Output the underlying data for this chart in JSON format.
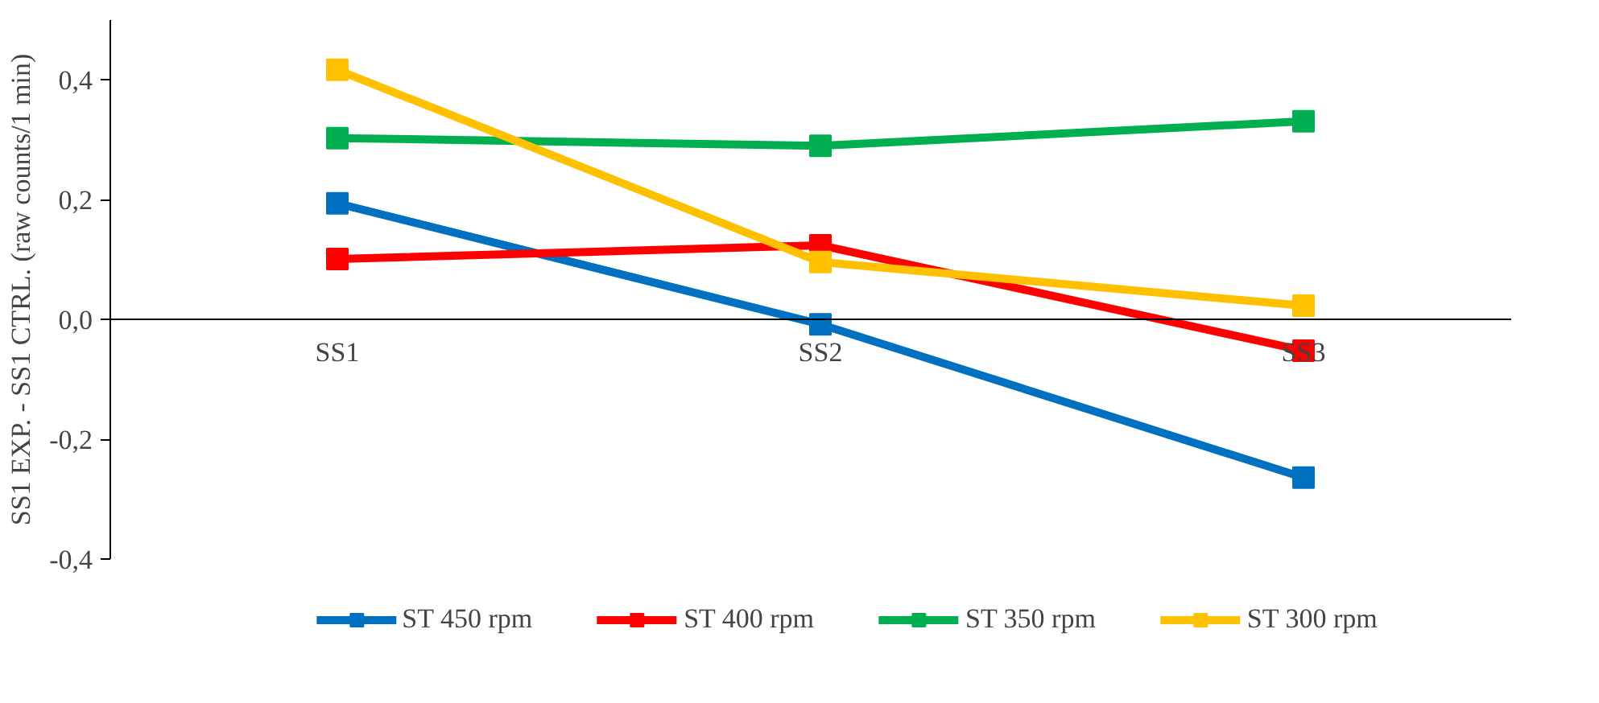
{
  "chart_data": {
    "type": "line",
    "ylabel": "SS1 EXP. - SS1 CTRL. (raw counts/1 min)",
    "categories": [
      "SS1",
      "SS2",
      "SS3"
    ],
    "series": [
      {
        "name": "ST 450 rpm",
        "color": "#0070c0",
        "values": [
          0.194,
          -0.008,
          -0.264
        ]
      },
      {
        "name": "ST 400 rpm",
        "color": "#ff0000",
        "values": [
          0.101,
          0.124,
          -0.052
        ]
      },
      {
        "name": "ST 350 rpm",
        "color": "#00b050",
        "values": [
          0.303,
          0.29,
          0.331
        ]
      },
      {
        "name": "ST 300 rpm",
        "color": "#ffc000",
        "values": [
          0.417,
          0.096,
          0.023
        ]
      }
    ],
    "ylim": [
      -0.4,
      0.5
    ],
    "yticks": [
      {
        "value": -0.4,
        "label": "-0,4"
      },
      {
        "value": -0.2,
        "label": "-0,2"
      },
      {
        "value": 0.0,
        "label": "0,0"
      },
      {
        "value": 0.2,
        "label": "0,2"
      },
      {
        "value": 0.4,
        "label": "0,4"
      }
    ],
    "grid": false,
    "legend": "bottom",
    "marker": "square",
    "line_style": "solid"
  }
}
